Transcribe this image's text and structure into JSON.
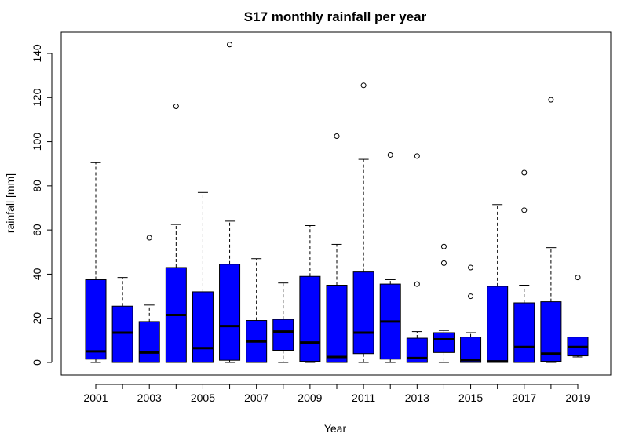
{
  "chart_data": {
    "type": "boxplot",
    "title": "S17 monthly rainfall per year",
    "xlabel": "Year",
    "ylabel": "rainfall [mm]",
    "ylim": [
      -6,
      150
    ],
    "y_ticks": [
      0,
      20,
      40,
      60,
      80,
      100,
      120,
      140
    ],
    "x_tick_labels": [
      "2001",
      "2003",
      "2005",
      "2007",
      "2009",
      "2011",
      "2013",
      "2015",
      "2017",
      "2019"
    ],
    "box_color": "#0000ff",
    "categories": [
      "2001",
      "2002",
      "2003",
      "2004",
      "2005",
      "2006",
      "2007",
      "2008",
      "2009",
      "2010",
      "2011",
      "2012",
      "2013",
      "2014",
      "2015",
      "2016",
      "2017",
      "2018",
      "2019"
    ],
    "boxes": [
      {
        "year": "2001",
        "min": 0,
        "q1": 1.5,
        "median": 5,
        "q3": 37.5,
        "max": 90.5,
        "outliers": []
      },
      {
        "year": "2002",
        "min": 0,
        "q1": 0,
        "median": 13.5,
        "q3": 25.5,
        "max": 38.5,
        "outliers": []
      },
      {
        "year": "2003",
        "min": 0,
        "q1": 0,
        "median": 4.5,
        "q3": 18.5,
        "max": 26,
        "outliers": [
          56.5
        ]
      },
      {
        "year": "2004",
        "min": 0,
        "q1": 0,
        "median": 21.5,
        "q3": 43,
        "max": 62.5,
        "outliers": [
          116
        ]
      },
      {
        "year": "2005",
        "min": 0,
        "q1": 0,
        "median": 6.5,
        "q3": 32,
        "max": 77,
        "outliers": []
      },
      {
        "year": "2006",
        "min": 0,
        "q1": 1,
        "median": 16.5,
        "q3": 44.5,
        "max": 64,
        "outliers": [
          144
        ]
      },
      {
        "year": "2007",
        "min": 0,
        "q1": 0,
        "median": 9.5,
        "q3": 19,
        "max": 47,
        "outliers": []
      },
      {
        "year": "2008",
        "min": 0,
        "q1": 5.5,
        "median": 14,
        "q3": 19.5,
        "max": 36,
        "outliers": []
      },
      {
        "year": "2009",
        "min": 0,
        "q1": 0.5,
        "median": 9,
        "q3": 39,
        "max": 62,
        "outliers": []
      },
      {
        "year": "2010",
        "min": 0,
        "q1": 0,
        "median": 2.5,
        "q3": 35,
        "max": 53.5,
        "outliers": [
          102.5
        ]
      },
      {
        "year": "2011",
        "min": 0,
        "q1": 4,
        "median": 13.5,
        "q3": 41,
        "max": 92,
        "outliers": [
          125.5
        ]
      },
      {
        "year": "2012",
        "min": 0,
        "q1": 1.5,
        "median": 18.5,
        "q3": 35.5,
        "max": 37.5,
        "outliers": [
          94
        ]
      },
      {
        "year": "2013",
        "min": 0,
        "q1": 0,
        "median": 2,
        "q3": 11,
        "max": 14,
        "outliers": [
          35.5,
          93.5
        ]
      },
      {
        "year": "2014",
        "min": 0,
        "q1": 4.5,
        "median": 10.5,
        "q3": 13.5,
        "max": 14.5,
        "outliers": [
          45,
          52.5
        ]
      },
      {
        "year": "2015",
        "min": 0,
        "q1": 0,
        "median": 1,
        "q3": 11.5,
        "max": 13.5,
        "outliers": [
          30,
          43
        ]
      },
      {
        "year": "2016",
        "min": 0,
        "q1": 0,
        "median": 0.5,
        "q3": 34.5,
        "max": 71.5,
        "outliers": []
      },
      {
        "year": "2017",
        "min": 0,
        "q1": 0,
        "median": 7,
        "q3": 27,
        "max": 35,
        "outliers": [
          69,
          86
        ]
      },
      {
        "year": "2018",
        "min": 0,
        "q1": 0.5,
        "median": 4,
        "q3": 27.5,
        "max": 52,
        "outliers": [
          119
        ]
      },
      {
        "year": "2019",
        "min": 2.5,
        "q1": 3,
        "median": 7,
        "q3": 11.5,
        "max": 11.5,
        "outliers": [
          38.5
        ]
      }
    ]
  }
}
